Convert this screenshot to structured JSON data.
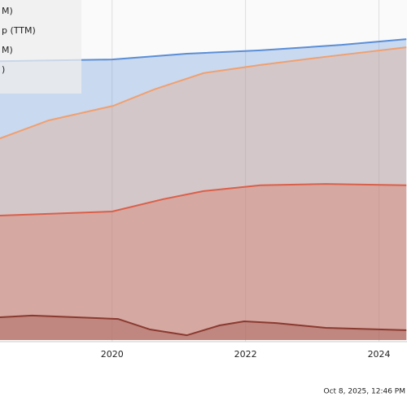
{
  "chart_data": {
    "type": "area",
    "xlim": [
      2018.32,
      2024.42
    ],
    "xticks": [
      2020,
      2022,
      2024
    ],
    "ylim": [
      0,
      100
    ],
    "grid": true,
    "series": [
      {
        "name": "M)",
        "color": "#5b8ed6",
        "x": [
          2018.32,
          2020,
          2021.12,
          2022.22,
          2023.44,
          2024.41
        ],
        "values": [
          82,
          82.5,
          84.2,
          85.2,
          86.8,
          88.5
        ]
      },
      {
        "name": "p (TTM)",
        "color": "#f0a070",
        "x": [
          2018.32,
          2019.05,
          2020.02,
          2020.63,
          2021.37,
          2022.22,
          2023.2,
          2024.41
        ],
        "values": [
          59.3,
          64.6,
          68.9,
          73.7,
          78.5,
          80.9,
          83.3,
          86.1
        ]
      },
      {
        "name": "M)",
        "color": "#d9604a",
        "x": [
          2018.32,
          2020,
          2020.76,
          2021.37,
          2022.22,
          2023.2,
          2024.41
        ],
        "values": [
          36.6,
          37.8,
          41.4,
          43.8,
          45.5,
          45.9,
          45.5
        ]
      },
      {
        "name": ")",
        "color": "#8a3a30",
        "x": [
          2018.32,
          2018.8,
          2020.09,
          2020.57,
          2021.12,
          2021.61,
          2021.98,
          2022.46,
          2023.2,
          2024.41
        ],
        "values": [
          6.7,
          7.2,
          6.2,
          3.1,
          1.4,
          4.3,
          5.5,
          5.0,
          3.6,
          2.9
        ]
      }
    ],
    "timestamp": "Oct 8, 2025, 12:46 PM"
  }
}
